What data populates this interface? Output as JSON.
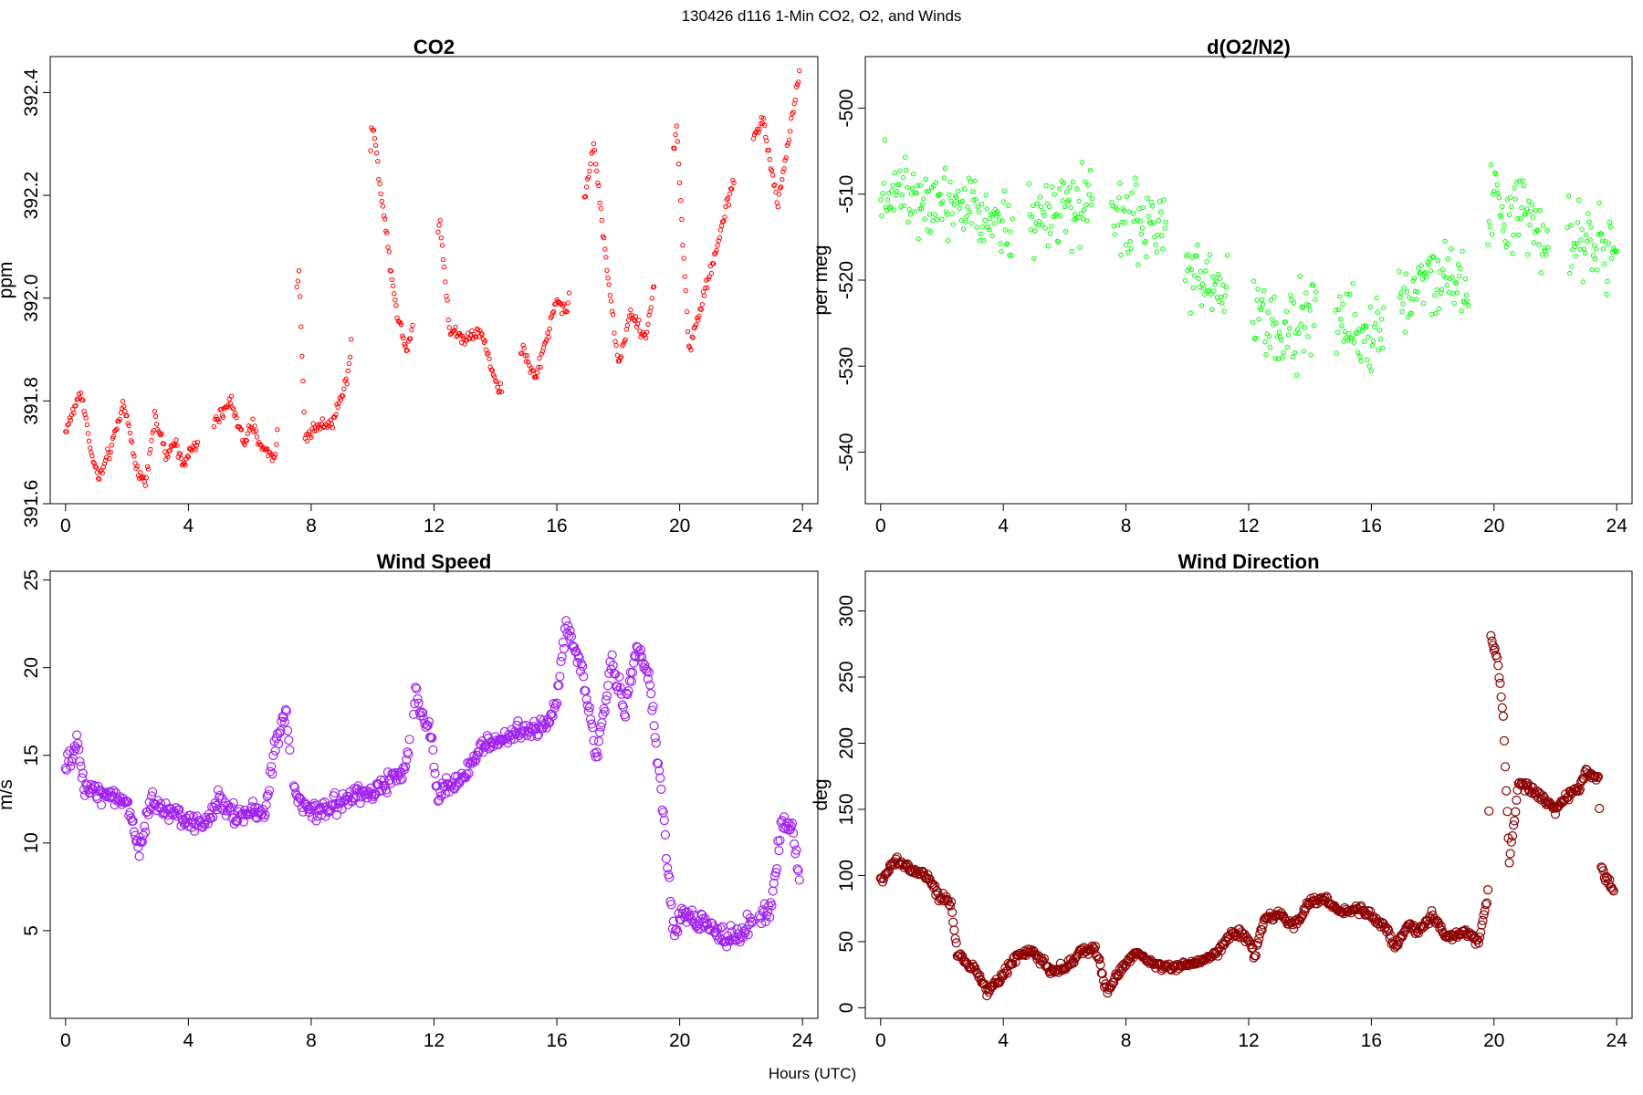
{
  "figure": {
    "title": "130426   d116   1-Min CO2, O2, and Winds",
    "xlabel": "Hours (UTC)"
  },
  "chart_data": [
    {
      "type": "scatter",
      "title": "CO2",
      "ylabel": "ppm",
      "color": "#ff0000",
      "xlim": [
        -0.5,
        24.5
      ],
      "ylim": [
        391.6,
        392.47
      ],
      "xticks": [
        "0",
        "4",
        "8",
        "12",
        "16",
        "20",
        "24"
      ],
      "yticks": [
        "391.6",
        "391.8",
        "392.0",
        "392.2",
        "392.4"
      ],
      "keypoints": [
        [
          0,
          391.74
        ],
        [
          0.5,
          391.82
        ],
        [
          0.9,
          391.68
        ],
        [
          1.1,
          391.65
        ],
        [
          1.5,
          391.71
        ],
        [
          1.9,
          391.8
        ],
        [
          2.3,
          391.67
        ],
        [
          2.6,
          391.64
        ],
        [
          2.9,
          391.77
        ],
        [
          3.3,
          391.69
        ],
        [
          3.6,
          391.72
        ],
        [
          3.8,
          391.68
        ],
        [
          4.2,
          391.71
        ],
        [
          4.9,
          391.76
        ],
        [
          5.4,
          391.8
        ],
        [
          5.8,
          391.72
        ],
        [
          6.1,
          391.75
        ],
        [
          6.4,
          391.71
        ],
        [
          6.8,
          391.69
        ],
        [
          7.6,
          392.05
        ],
        [
          7.8,
          391.73
        ],
        [
          8.2,
          391.75
        ],
        [
          8.7,
          391.76
        ],
        [
          9.2,
          391.85
        ],
        [
          10.0,
          392.34
        ],
        [
          10.5,
          392.1
        ],
        [
          10.8,
          391.97
        ],
        [
          11.1,
          391.9
        ],
        [
          12.2,
          392.15
        ],
        [
          12.5,
          391.94
        ],
        [
          13.0,
          391.92
        ],
        [
          13.5,
          391.94
        ],
        [
          14.1,
          391.82
        ],
        [
          14.9,
          391.9
        ],
        [
          15.3,
          391.84
        ],
        [
          16.0,
          392.0
        ],
        [
          16.3,
          391.97
        ],
        [
          17.2,
          392.3
        ],
        [
          17.6,
          392.08
        ],
        [
          18.0,
          391.87
        ],
        [
          18.4,
          391.97
        ],
        [
          18.9,
          391.92
        ],
        [
          19.9,
          392.33
        ],
        [
          20.3,
          391.9
        ],
        [
          21.0,
          392.05
        ],
        [
          21.7,
          392.22
        ],
        [
          22.7,
          392.35
        ],
        [
          23.2,
          392.18
        ],
        [
          23.9,
          392.44
        ]
      ],
      "noise": 0.018,
      "gaps": [
        [
          4.3,
          4.8
        ],
        [
          6.9,
          7.5
        ],
        [
          9.3,
          9.9
        ],
        [
          11.3,
          12.1
        ],
        [
          14.2,
          14.8
        ],
        [
          16.4,
          16.9
        ],
        [
          19.2,
          19.8
        ],
        [
          21.8,
          22.4
        ]
      ]
    },
    {
      "type": "scatter",
      "title": "d(O2/N2)",
      "ylabel": "per meg",
      "color": "#00ff00",
      "xlim": [
        -0.5,
        24.5
      ],
      "ylim": [
        -546,
        -494
      ],
      "xticks": [
        "0",
        "4",
        "8",
        "12",
        "16",
        "20",
        "24"
      ],
      "yticks": [
        "-540",
        "-530",
        "-520",
        "-510",
        "-500"
      ],
      "keypoints": [
        [
          0,
          -509
        ],
        [
          2,
          -510
        ],
        [
          4,
          -513
        ],
        [
          6,
          -512
        ],
        [
          8,
          -513
        ],
        [
          9,
          -514
        ],
        [
          10,
          -519
        ],
        [
          11,
          -521
        ],
        [
          12,
          -523
        ],
        [
          13,
          -526
        ],
        [
          14,
          -524
        ],
        [
          15,
          -525
        ],
        [
          16,
          -526
        ],
        [
          17,
          -522
        ],
        [
          18,
          -519
        ],
        [
          19,
          -521
        ],
        [
          20,
          -512
        ],
        [
          21,
          -512
        ],
        [
          22,
          -515
        ],
        [
          24,
          -516
        ]
      ],
      "noise": 6.5,
      "gaps": [
        [
          4.3,
          4.8
        ],
        [
          6.9,
          7.5
        ],
        [
          9.3,
          9.9
        ],
        [
          11.3,
          12.1
        ],
        [
          14.2,
          14.8
        ],
        [
          16.4,
          16.9
        ],
        [
          19.2,
          19.8
        ],
        [
          21.8,
          22.4
        ]
      ]
    },
    {
      "type": "scatter",
      "title": "Wind Speed",
      "ylabel": "m/s",
      "color": "#a020f0",
      "xlim": [
        -0.5,
        24.5
      ],
      "ylim": [
        0,
        25.5
      ],
      "xticks": [
        "0",
        "4",
        "8",
        "12",
        "16",
        "20",
        "24"
      ],
      "yticks": [
        "5",
        "10",
        "15",
        "20",
        "25"
      ],
      "keypoints": [
        [
          0,
          14.2
        ],
        [
          0.4,
          15.6
        ],
        [
          0.6,
          13.2
        ],
        [
          1.5,
          12.8
        ],
        [
          2.0,
          12.3
        ],
        [
          2.4,
          9.4
        ],
        [
          2.8,
          12.4
        ],
        [
          3.5,
          11.8
        ],
        [
          4.0,
          11.2
        ],
        [
          4.5,
          11.0
        ],
        [
          5.0,
          12.5
        ],
        [
          5.5,
          11.6
        ],
        [
          6.0,
          11.8
        ],
        [
          6.5,
          11.5
        ],
        [
          6.8,
          15.5
        ],
        [
          7.2,
          17.4
        ],
        [
          7.5,
          12.5
        ],
        [
          8.0,
          11.6
        ],
        [
          9.0,
          12.4
        ],
        [
          10.0,
          13.0
        ],
        [
          11.0,
          13.8
        ],
        [
          11.4,
          18.5
        ],
        [
          11.9,
          16.2
        ],
        [
          12.1,
          12.8
        ],
        [
          13.0,
          13.8
        ],
        [
          13.5,
          15.5
        ],
        [
          14.5,
          16.2
        ],
        [
          15.5,
          16.5
        ],
        [
          16.0,
          18.0
        ],
        [
          16.3,
          22.5
        ],
        [
          16.8,
          20.0
        ],
        [
          17.3,
          15.0
        ],
        [
          17.8,
          20.5
        ],
        [
          18.2,
          17.5
        ],
        [
          18.6,
          21.0
        ],
        [
          19.0,
          19.5
        ],
        [
          19.5,
          11.0
        ],
        [
          19.8,
          4.8
        ],
        [
          20.1,
          6.2
        ],
        [
          20.6,
          5.5
        ],
        [
          21.0,
          5.2
        ],
        [
          21.5,
          4.5
        ],
        [
          22.0,
          4.8
        ],
        [
          22.5,
          5.8
        ],
        [
          23.0,
          6.2
        ],
        [
          23.3,
          11.2
        ],
        [
          23.7,
          10.8
        ],
        [
          23.9,
          8.0
        ]
      ],
      "noise": 0.8,
      "gaps": [
        [
          7.3,
          7.4
        ],
        [
          11.2,
          11.3
        ],
        [
          22.4,
          22.6
        ]
      ]
    },
    {
      "type": "scatter",
      "title": "Wind Direction",
      "ylabel": "deg",
      "color": "#8b0000",
      "xlim": [
        -0.5,
        24.5
      ],
      "ylim": [
        -8,
        330
      ],
      "xticks": [
        "0",
        "4",
        "8",
        "12",
        "16",
        "20",
        "24"
      ],
      "yticks": [
        "0",
        "50",
        "100",
        "150",
        "200",
        "250",
        "300"
      ],
      "keypoints": [
        [
          0,
          96
        ],
        [
          0.5,
          112
        ],
        [
          1.0,
          104
        ],
        [
          1.5,
          100
        ],
        [
          1.9,
          84
        ],
        [
          2.3,
          80
        ],
        [
          2.5,
          40
        ],
        [
          3.0,
          32
        ],
        [
          3.5,
          12
        ],
        [
          3.8,
          20
        ],
        [
          4.5,
          40
        ],
        [
          5.0,
          42
        ],
        [
          5.5,
          28
        ],
        [
          6.0,
          30
        ],
        [
          6.5,
          42
        ],
        [
          7.0,
          45
        ],
        [
          7.4,
          12
        ],
        [
          7.8,
          28
        ],
        [
          8.3,
          42
        ],
        [
          8.8,
          34
        ],
        [
          9.5,
          30
        ],
        [
          10.5,
          35
        ],
        [
          11.0,
          42
        ],
        [
          11.5,
          58
        ],
        [
          12.0,
          52
        ],
        [
          12.2,
          38
        ],
        [
          12.5,
          68
        ],
        [
          13.0,
          70
        ],
        [
          13.5,
          62
        ],
        [
          14.0,
          80
        ],
        [
          14.5,
          82
        ],
        [
          15.0,
          72
        ],
        [
          15.5,
          75
        ],
        [
          16.0,
          70
        ],
        [
          16.5,
          60
        ],
        [
          16.8,
          45
        ],
        [
          17.2,
          64
        ],
        [
          17.5,
          58
        ],
        [
          18.0,
          70
        ],
        [
          18.5,
          52
        ],
        [
          19.0,
          58
        ],
        [
          19.5,
          50
        ],
        [
          19.8,
          85
        ],
        [
          19.9,
          280
        ],
        [
          20.1,
          265
        ],
        [
          20.3,
          220
        ],
        [
          20.5,
          110
        ],
        [
          20.8,
          170
        ],
        [
          21.2,
          165
        ],
        [
          21.6,
          158
        ],
        [
          22.0,
          150
        ],
        [
          22.5,
          162
        ],
        [
          22.8,
          165
        ],
        [
          23.0,
          178
        ],
        [
          23.4,
          174
        ],
        [
          23.5,
          104
        ],
        [
          23.9,
          88
        ]
      ],
      "noise": 4.5,
      "gaps": [
        [
          19.86,
          19.9
        ],
        [
          23.45,
          23.5
        ]
      ]
    }
  ]
}
